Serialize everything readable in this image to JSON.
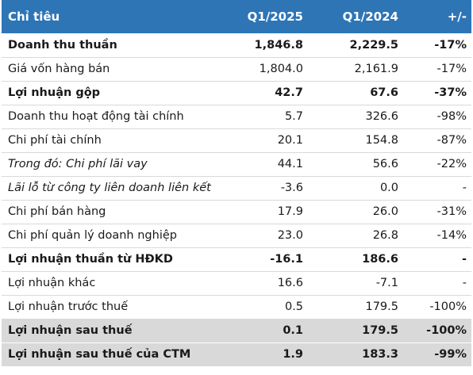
{
  "header": {
    "label": "Chỉ tiêu",
    "q1_2025": "Q1/2025",
    "q1_2024": "Q1/2024",
    "diff": "+/-"
  },
  "rows": [
    {
      "label": "Doanh thu thuần",
      "q1_2025": "1,846.8",
      "q1_2024": "2,229.5",
      "diff": "-17%",
      "style": "bold"
    },
    {
      "label": "Giá vốn hàng bán",
      "q1_2025": "1,804.0",
      "q1_2024": "2,161.9",
      "diff": "-17%",
      "style": "normal"
    },
    {
      "label": "Lợi nhuận gộp",
      "q1_2025": "42.7",
      "q1_2024": "67.6",
      "diff": "-37%",
      "style": "bold"
    },
    {
      "label": "Doanh thu hoạt động tài chính",
      "q1_2025": "5.7",
      "q1_2024": "326.6",
      "diff": "-98%",
      "style": "normal"
    },
    {
      "label": "Chi phí tài chính",
      "q1_2025": "20.1",
      "q1_2024": "154.8",
      "diff": "-87%",
      "style": "normal"
    },
    {
      "label": "Trong đó: Chi phí lãi vay",
      "q1_2025": "44.1",
      "q1_2024": "56.6",
      "diff": "-22%",
      "style": "italic"
    },
    {
      "label": "Lãi lỗ từ công ty liên doanh liên kết",
      "q1_2025": "-3.6",
      "q1_2024": "0.0",
      "diff": "-",
      "style": "italic"
    },
    {
      "label": "Chi phí bán hàng",
      "q1_2025": "17.9",
      "q1_2024": "26.0",
      "diff": "-31%",
      "style": "normal"
    },
    {
      "label": "Chi phí quản lý doanh nghiệp",
      "q1_2025": "23.0",
      "q1_2024": "26.8",
      "diff": "-14%",
      "style": "normal"
    },
    {
      "label": "Lợi nhuận thuần từ HĐKD",
      "q1_2025": "-16.1",
      "q1_2024": "186.6",
      "diff": "-",
      "style": "bold"
    },
    {
      "label": "Lợi nhuận khác",
      "q1_2025": "16.6",
      "q1_2024": "-7.1",
      "diff": "-",
      "style": "normal"
    },
    {
      "label": "Lợi nhuận trước thuế",
      "q1_2025": "0.5",
      "q1_2024": "179.5",
      "diff": "-100%",
      "style": "normal"
    },
    {
      "label": "Lợi nhuận sau thuế",
      "q1_2025": "0.1",
      "q1_2024": "179.5",
      "diff": "-100%",
      "style": "bold-shaded"
    },
    {
      "label": "Lợi nhuận sau thuế của CTM",
      "q1_2025": "1.9",
      "q1_2024": "183.3",
      "diff": "-99%",
      "style": "bold-shaded"
    }
  ],
  "colors": {
    "header_bg": "#2e75b6",
    "header_text": "#ffffff",
    "shaded_bg": "#d9d9d9",
    "divider": "#d9d9d9"
  }
}
